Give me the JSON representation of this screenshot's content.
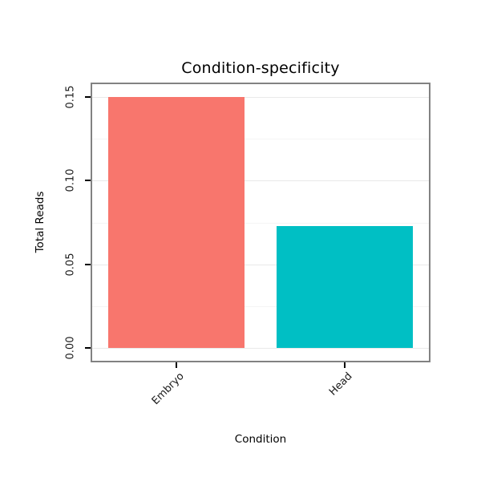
{
  "chart_data": {
    "type": "bar",
    "title": "Condition-specificity",
    "xlabel": "Condition",
    "ylabel": "Total Reads",
    "categories": [
      "Embryo",
      "Head"
    ],
    "values": [
      0.15,
      0.073
    ],
    "colors": [
      "#F8766D",
      "#00BFC4"
    ],
    "ylim": [
      0,
      0.15
    ],
    "yticks": [
      0,
      0.05,
      0.1,
      0.15
    ],
    "ytick_labels": [
      "0.00",
      "0.05",
      "0.10",
      "0.15"
    ],
    "grid": true,
    "legend": "none",
    "panel_border_color": "#828282",
    "background_color": "#ffffff"
  }
}
